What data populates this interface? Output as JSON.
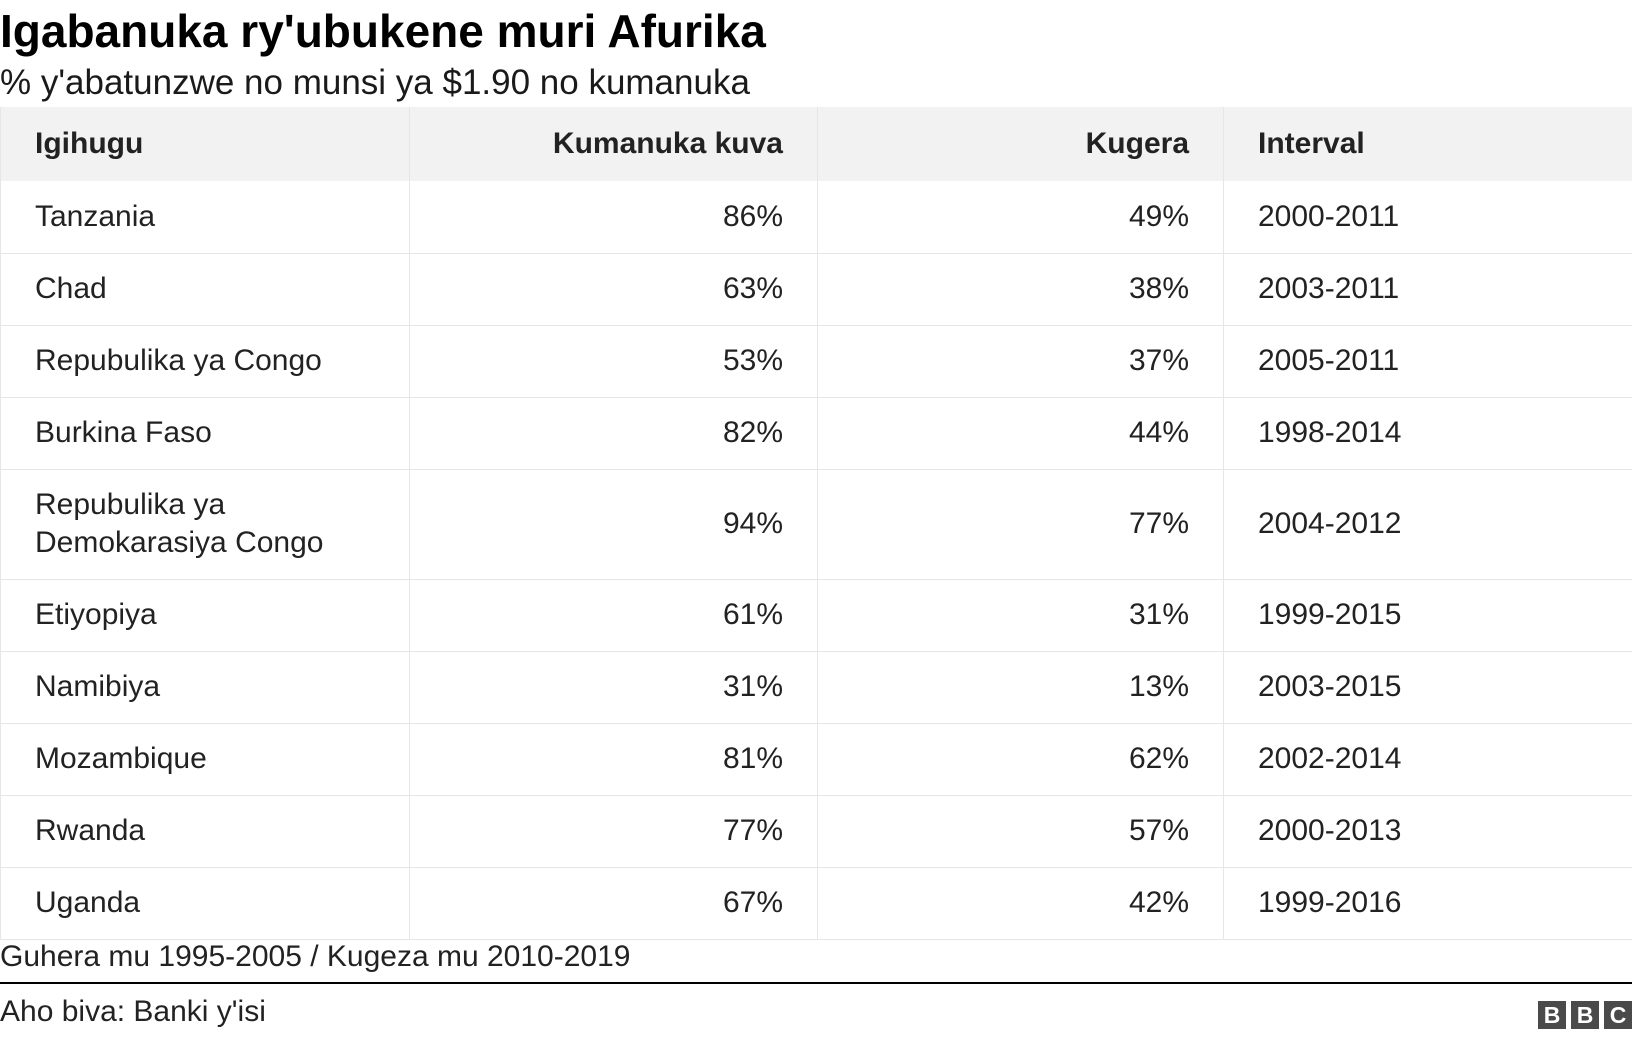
{
  "title": "Igabanuka ry'ubukene muri Afurika",
  "subtitle": "% y'abatunzwe no munsi ya $1.90 no kumanuka",
  "chart_data": {
    "type": "table",
    "columns": [
      "Igihugu",
      "Kumanuka kuva",
      "Kugera",
      "Interval"
    ],
    "rows": [
      [
        "Tanzania",
        "86%",
        "49%",
        "2000-2011"
      ],
      [
        "Chad",
        "63%",
        "38%",
        "2003-2011"
      ],
      [
        "Repubulika ya Congo",
        "53%",
        "37%",
        "2005-2011"
      ],
      [
        "Burkina Faso",
        "82%",
        "44%",
        "1998-2014"
      ],
      [
        "Repubulika ya Demokarasiya Congo",
        "94%",
        "77%",
        "2004-2012"
      ],
      [
        "Etiyopiya",
        "61%",
        "31%",
        "1999-2015"
      ],
      [
        "Namibiya",
        "31%",
        "13%",
        "2003-2015"
      ],
      [
        "Mozambique",
        "81%",
        "62%",
        "2002-2014"
      ],
      [
        "Rwanda",
        "77%",
        "57%",
        "2000-2013"
      ],
      [
        "Uganda",
        "67%",
        "42%",
        "1999-2016"
      ]
    ]
  },
  "note": "Guhera mu 1995-2005 / Kugeza mu 2010-2019",
  "source": "Aho biva: Banki y'isi",
  "logo": [
    "B",
    "B",
    "C"
  ],
  "colors": {
    "header_bg": "#f2f2f2",
    "text": "#222222",
    "border": "#e6e6e6",
    "logo_bg": "#4a4a4a"
  }
}
